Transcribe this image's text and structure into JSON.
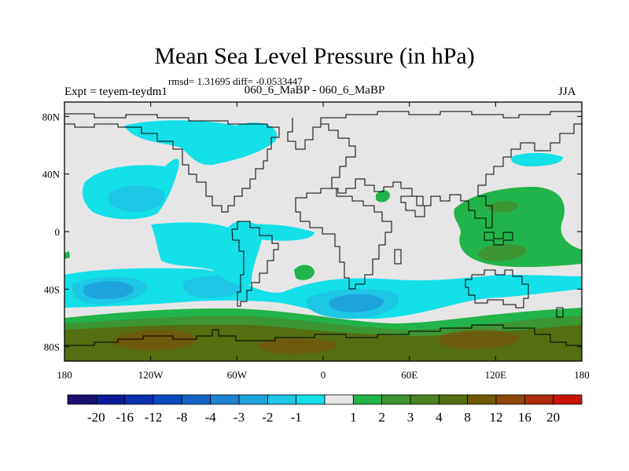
{
  "title": "Mean Sea Level Pressure (in hPa)",
  "stats": "rmsd= 1.31695 diff= -0.0533447",
  "experiment": "Expt = teyem-teydm1",
  "subtitle": "060_6_MaBP - 060_6_MaBP",
  "season": "JJA",
  "map": {
    "projection": "cylindrical equidistant",
    "lon_range": [
      -180,
      180
    ],
    "lat_range": [
      -90,
      90
    ],
    "background_color": "#e6e6e6",
    "coastline_color": "#000000",
    "lat_ticks": [
      {
        "value": 80,
        "label": "80N"
      },
      {
        "value": 40,
        "label": "40N"
      },
      {
        "value": 0,
        "label": "0"
      },
      {
        "value": -40,
        "label": "40S"
      },
      {
        "value": -80,
        "label": "80S"
      }
    ],
    "lon_ticks": [
      {
        "value": -180,
        "label": "180"
      },
      {
        "value": -120,
        "label": "120W"
      },
      {
        "value": -60,
        "label": "60W"
      },
      {
        "value": 0,
        "label": "0"
      },
      {
        "value": 60,
        "label": "60E"
      },
      {
        "value": 120,
        "label": "120E"
      },
      {
        "value": 180,
        "label": "180"
      }
    ]
  },
  "colorbar": {
    "colors": [
      "#1a1070",
      "#0a1a9c",
      "#0a2fb0",
      "#0a48c2",
      "#1464c8",
      "#1c82d2",
      "#1ea4dc",
      "#1cc8e6",
      "#14e0ea",
      "#e6e6e6",
      "#22b44a",
      "#3c9632",
      "#4a8220",
      "#546e10",
      "#6e5a08",
      "#8e4608",
      "#ae2c08",
      "#c81406"
    ],
    "labels": [
      "-20",
      "-16",
      "-12",
      "-8",
      "-4",
      "-3",
      "-2",
      "-1",
      "1",
      "2",
      "3",
      "4",
      "8",
      "12",
      "16",
      "20"
    ]
  }
}
